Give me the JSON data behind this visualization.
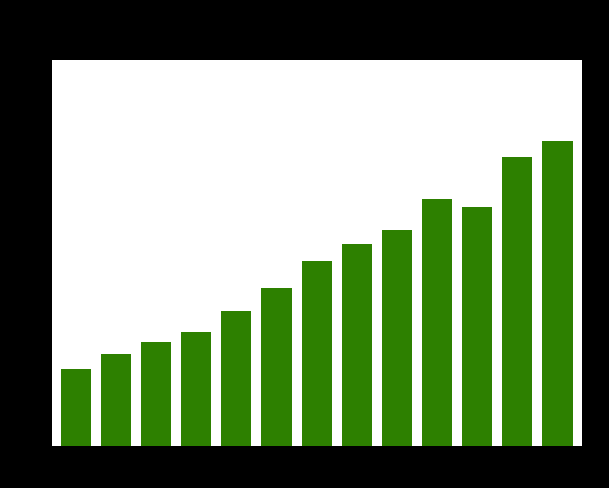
{
  "values": [
    100,
    120,
    135,
    148,
    175,
    205,
    240,
    262,
    280,
    320,
    310,
    375,
    395
  ],
  "bar_color": "#2d8000",
  "background_color": "#ffffff",
  "plot_bg_color": "#ffffff",
  "figure_bg_color": "#000000",
  "grid_color": "#cccccc",
  "ylim": [
    0,
    500
  ],
  "bar_width": 0.75,
  "edge_color": "none",
  "grid_linewidth": 0.8
}
